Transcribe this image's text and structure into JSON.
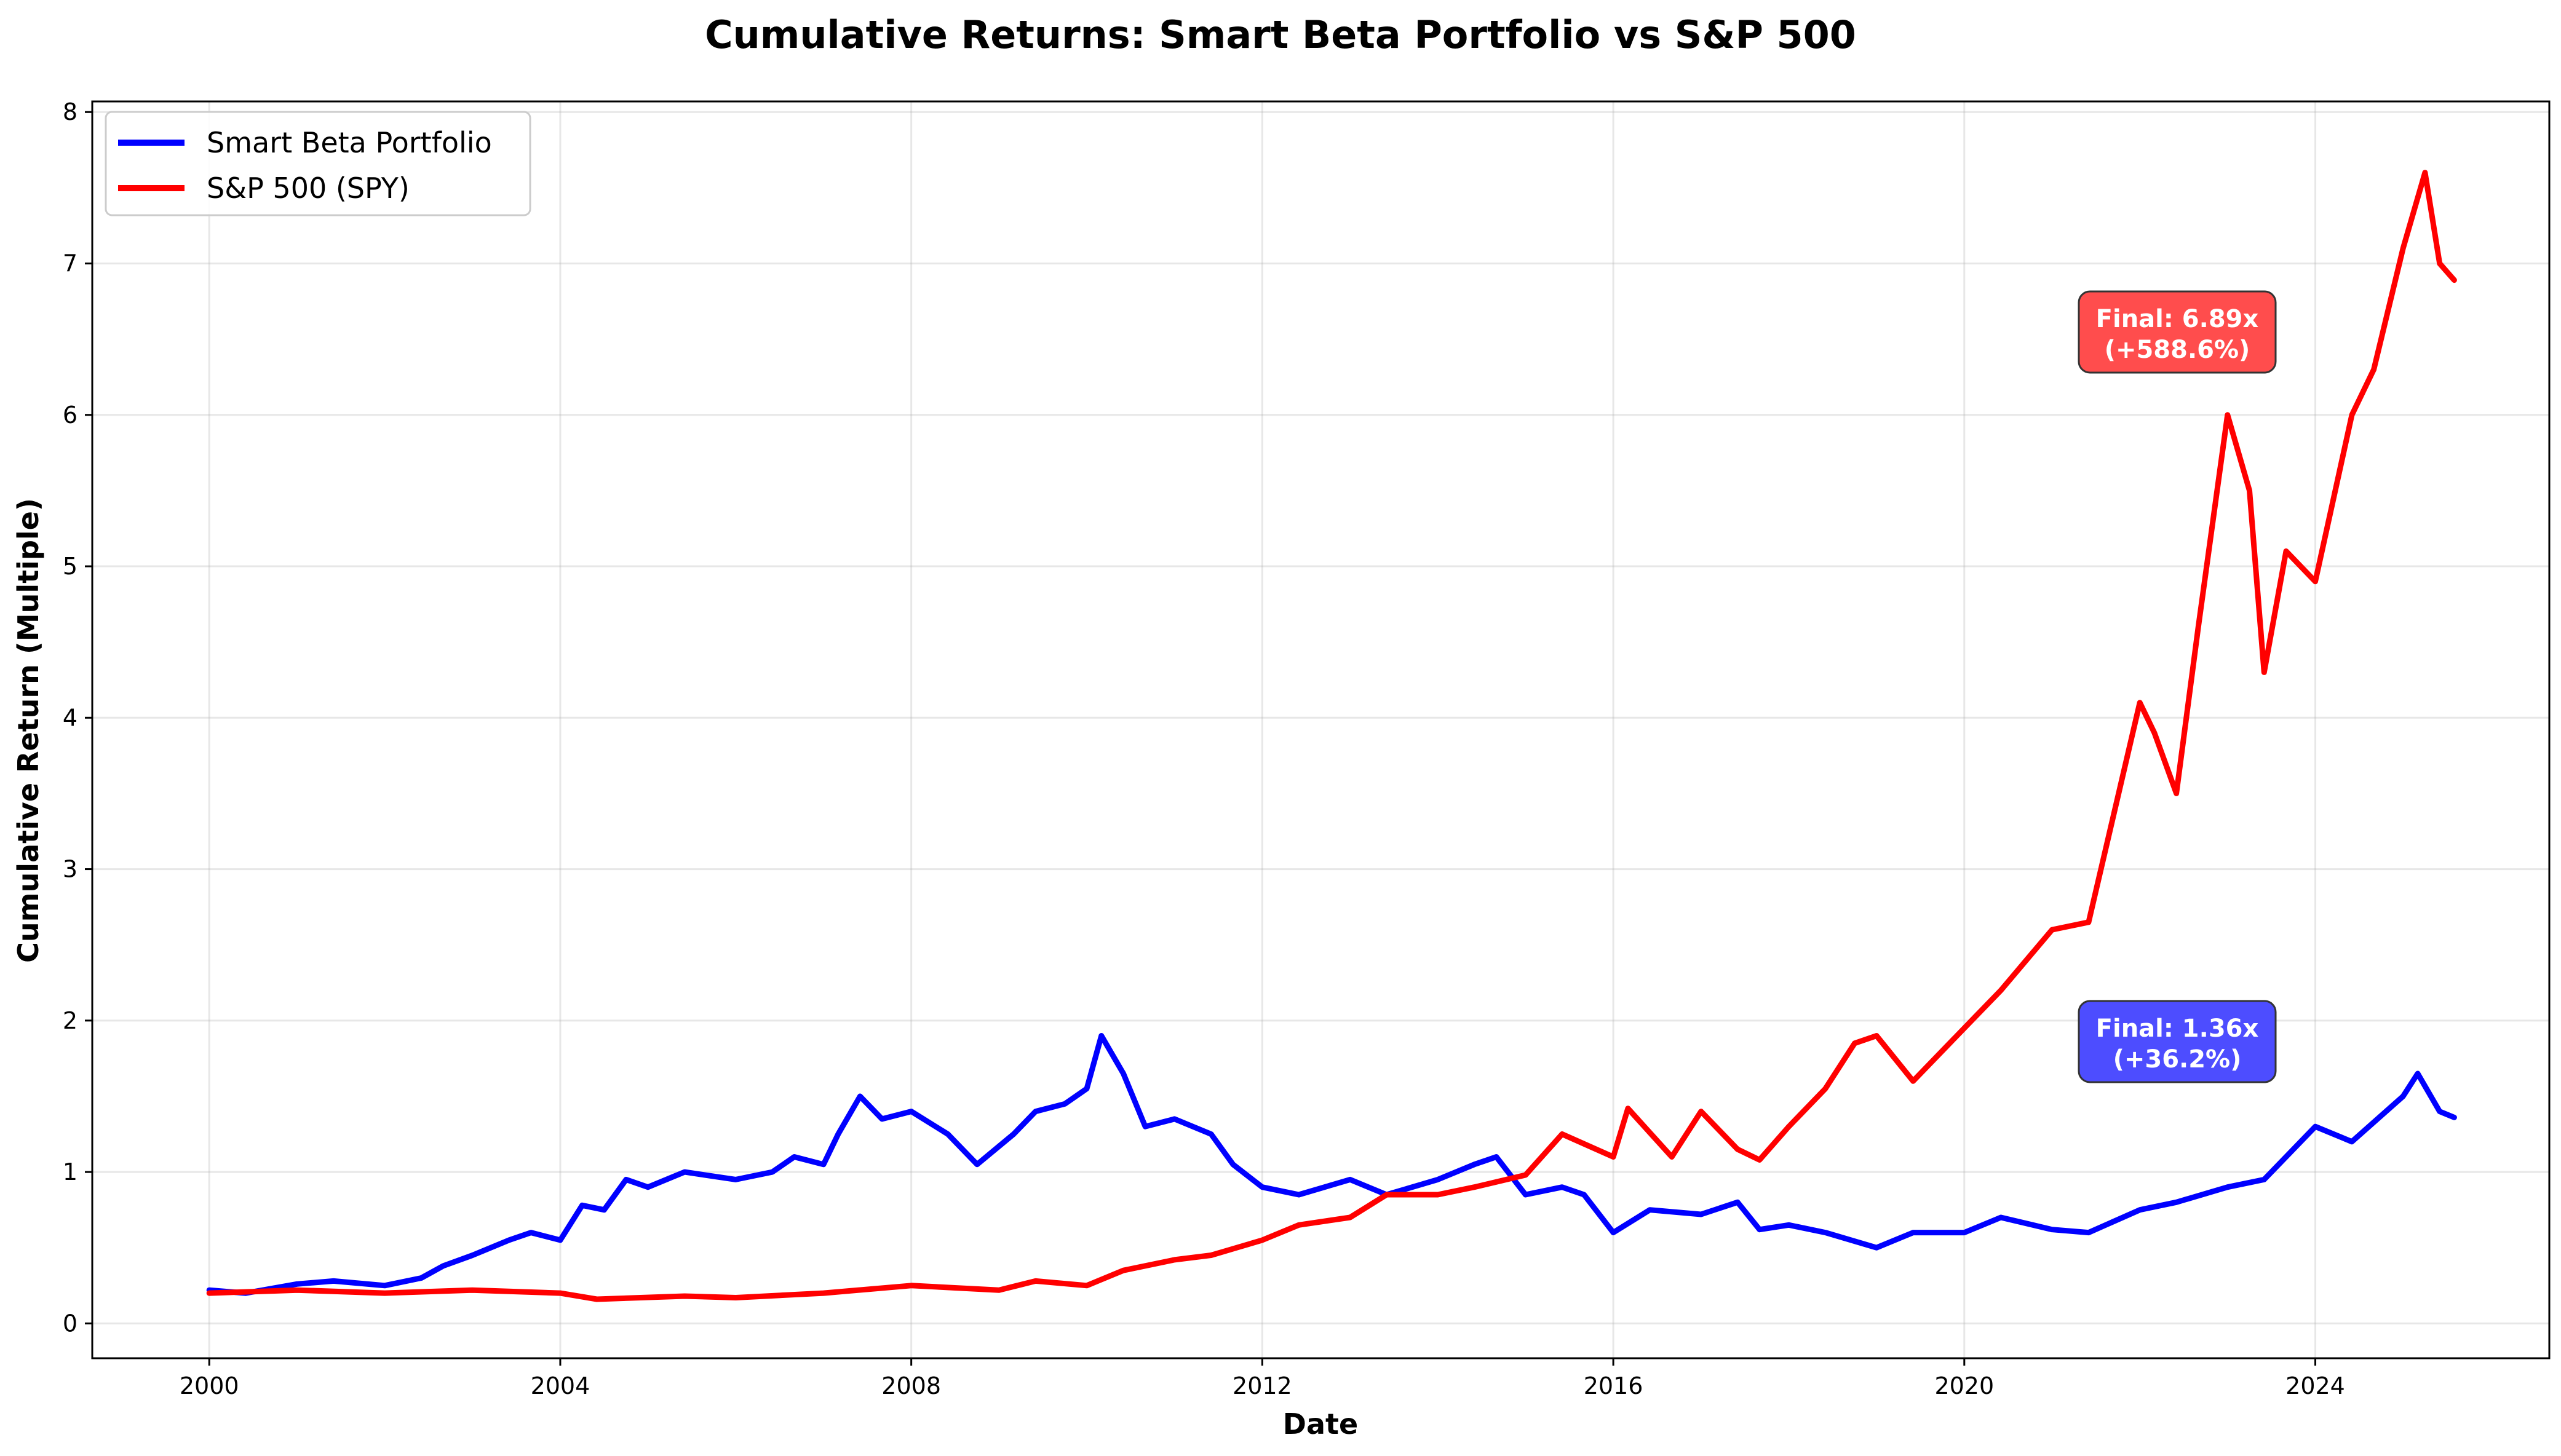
{
  "chart_data": {
    "type": "line",
    "title": "Cumulative Returns: Smart Beta Portfolio vs S&P 500",
    "xlabel": "Date",
    "ylabel": "Cumulative Return (Multiple)",
    "xlim": [
      "1998-09-01",
      "2026-09-01"
    ],
    "ylim": [
      -0.23,
      8.07
    ],
    "x_ticks": [
      "2000",
      "2004",
      "2008",
      "2012",
      "2016",
      "2020",
      "2024"
    ],
    "y_ticks": [
      0,
      1,
      2,
      3,
      4,
      5,
      6,
      7,
      8
    ],
    "grid": true,
    "legend_position": "top-left",
    "series": [
      {
        "name": "Smart Beta Portfolio",
        "color": "#0000ff",
        "points": [
          [
            "2000-01-01",
            0.22
          ],
          [
            "2000-06-01",
            0.2
          ],
          [
            "2001-01-01",
            0.26
          ],
          [
            "2001-06-01",
            0.28
          ],
          [
            "2002-01-01",
            0.25
          ],
          [
            "2002-06-01",
            0.3
          ],
          [
            "2002-09-01",
            0.38
          ],
          [
            "2003-01-01",
            0.45
          ],
          [
            "2003-06-01",
            0.55
          ],
          [
            "2003-09-01",
            0.6
          ],
          [
            "2004-01-01",
            0.55
          ],
          [
            "2004-04-01",
            0.78
          ],
          [
            "2004-07-01",
            0.75
          ],
          [
            "2004-10-01",
            0.95
          ],
          [
            "2005-01-01",
            0.9
          ],
          [
            "2005-06-01",
            1.0
          ],
          [
            "2006-01-01",
            0.95
          ],
          [
            "2006-06-01",
            1.0
          ],
          [
            "2006-09-01",
            1.1
          ],
          [
            "2007-01-01",
            1.05
          ],
          [
            "2007-03-01",
            1.25
          ],
          [
            "2007-06-01",
            1.5
          ],
          [
            "2007-09-01",
            1.35
          ],
          [
            "2008-01-01",
            1.4
          ],
          [
            "2008-06-01",
            1.25
          ],
          [
            "2008-10-01",
            1.05
          ],
          [
            "2009-03-01",
            1.25
          ],
          [
            "2009-06-01",
            1.4
          ],
          [
            "2009-10-01",
            1.45
          ],
          [
            "2010-01-01",
            1.55
          ],
          [
            "2010-03-01",
            1.9
          ],
          [
            "2010-06-01",
            1.65
          ],
          [
            "2010-09-01",
            1.3
          ],
          [
            "2011-01-01",
            1.35
          ],
          [
            "2011-06-01",
            1.25
          ],
          [
            "2011-09-01",
            1.05
          ],
          [
            "2012-01-01",
            0.9
          ],
          [
            "2012-06-01",
            0.85
          ],
          [
            "2013-01-01",
            0.95
          ],
          [
            "2013-06-01",
            0.85
          ],
          [
            "2014-01-01",
            0.95
          ],
          [
            "2014-06-01",
            1.05
          ],
          [
            "2014-09-01",
            1.1
          ],
          [
            "2015-01-01",
            0.85
          ],
          [
            "2015-06-01",
            0.9
          ],
          [
            "2015-09-01",
            0.85
          ],
          [
            "2016-01-01",
            0.6
          ],
          [
            "2016-06-01",
            0.75
          ],
          [
            "2017-01-01",
            0.72
          ],
          [
            "2017-06-01",
            0.8
          ],
          [
            "2017-09-01",
            0.62
          ],
          [
            "2018-01-01",
            0.65
          ],
          [
            "2018-06-01",
            0.6
          ],
          [
            "2019-01-01",
            0.5
          ],
          [
            "2019-06-01",
            0.6
          ],
          [
            "2020-01-01",
            0.6
          ],
          [
            "2020-06-01",
            0.7
          ],
          [
            "2021-01-01",
            0.62
          ],
          [
            "2021-06-01",
            0.6
          ],
          [
            "2022-01-01",
            0.75
          ],
          [
            "2022-06-01",
            0.8
          ],
          [
            "2023-01-01",
            0.9
          ],
          [
            "2023-06-01",
            0.95
          ],
          [
            "2024-01-01",
            1.3
          ],
          [
            "2024-06-01",
            1.2
          ],
          [
            "2025-01-01",
            1.5
          ],
          [
            "2025-03-01",
            1.65
          ],
          [
            "2025-06-01",
            1.4
          ],
          [
            "2025-08-01",
            1.36
          ]
        ]
      },
      {
        "name": "S&P 500 (SPY)",
        "color": "#ff0000",
        "points": [
          [
            "2000-01-01",
            0.2
          ],
          [
            "2001-01-01",
            0.22
          ],
          [
            "2002-01-01",
            0.2
          ],
          [
            "2003-01-01",
            0.22
          ],
          [
            "2004-01-01",
            0.2
          ],
          [
            "2004-06-01",
            0.16
          ],
          [
            "2005-06-01",
            0.18
          ],
          [
            "2006-01-01",
            0.17
          ],
          [
            "2007-01-01",
            0.2
          ],
          [
            "2008-01-01",
            0.25
          ],
          [
            "2009-01-01",
            0.22
          ],
          [
            "2009-06-01",
            0.28
          ],
          [
            "2010-01-01",
            0.25
          ],
          [
            "2010-06-01",
            0.35
          ],
          [
            "2011-01-01",
            0.42
          ],
          [
            "2011-06-01",
            0.45
          ],
          [
            "2012-01-01",
            0.55
          ],
          [
            "2012-06-01",
            0.65
          ],
          [
            "2013-01-01",
            0.7
          ],
          [
            "2013-06-01",
            0.85
          ],
          [
            "2014-01-01",
            0.85
          ],
          [
            "2014-06-01",
            0.9
          ],
          [
            "2015-01-01",
            0.98
          ],
          [
            "2015-06-01",
            1.25
          ],
          [
            "2016-01-01",
            1.1
          ],
          [
            "2016-03-01",
            1.42
          ],
          [
            "2016-09-01",
            1.1
          ],
          [
            "2017-01-01",
            1.4
          ],
          [
            "2017-06-01",
            1.15
          ],
          [
            "2017-09-01",
            1.08
          ],
          [
            "2018-01-01",
            1.3
          ],
          [
            "2018-06-01",
            1.55
          ],
          [
            "2018-10-01",
            1.85
          ],
          [
            "2019-01-01",
            1.9
          ],
          [
            "2019-06-01",
            1.6
          ],
          [
            "2020-01-01",
            1.95
          ],
          [
            "2020-06-01",
            2.2
          ],
          [
            "2021-01-01",
            2.6
          ],
          [
            "2021-06-01",
            2.65
          ],
          [
            "2022-01-01",
            4.1
          ],
          [
            "2022-03-01",
            3.9
          ],
          [
            "2022-06-01",
            3.5
          ],
          [
            "2022-09-01",
            4.6
          ],
          [
            "2023-01-01",
            6.0
          ],
          [
            "2023-04-01",
            5.5
          ],
          [
            "2023-06-01",
            4.3
          ],
          [
            "2023-09-01",
            5.1
          ],
          [
            "2024-01-01",
            4.9
          ],
          [
            "2024-06-01",
            6.0
          ],
          [
            "2024-09-01",
            6.3
          ],
          [
            "2025-01-01",
            7.1
          ],
          [
            "2025-04-01",
            7.6
          ],
          [
            "2025-06-01",
            7.0
          ],
          [
            "2025-08-01",
            6.89
          ]
        ]
      }
    ],
    "annotations": [
      {
        "text_line1": "Final: 6.89x",
        "text_line2": "(+588.6%)",
        "color": "#ff4d4d"
      },
      {
        "text_line1": "Final: 1.36x",
        "text_line2": "(+36.2%)",
        "color": "#4d4dff"
      }
    ]
  }
}
